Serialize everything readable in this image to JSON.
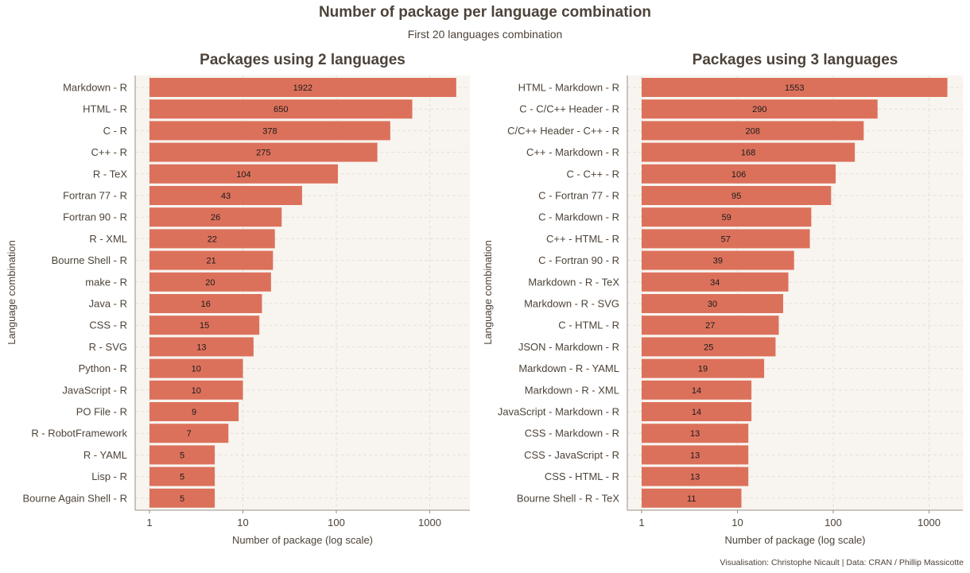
{
  "title": "Number of package per language combination",
  "subtitle": "First 20 languages combination",
  "caption": "Visualisation: Christophe Nicault | Data: CRAN / Phillip Massicotte",
  "colors": {
    "bar": "#dc715b",
    "panel_bg": "#f8f5f0",
    "grid": "#e6dfd5",
    "text": "#4d4339",
    "axis": "#9a8f84"
  },
  "chart_data": [
    {
      "type": "bar",
      "orientation": "horizontal",
      "title": "Packages using 2 languages",
      "xlabel": "Number of package (log scale)",
      "ylabel": "Language combination",
      "x_scale": "log10",
      "xticks": [
        "1",
        "10",
        "100",
        "1000"
      ],
      "grid": true,
      "categories": [
        "Markdown - R",
        "HTML - R",
        "C - R",
        "C++ - R",
        "R - TeX",
        "Fortran 77 - R",
        "Fortran 90 - R",
        "R - XML",
        "Bourne Shell - R",
        "make - R",
        "Java - R",
        "CSS - R",
        "R - SVG",
        "Python - R",
        "JavaScript - R",
        "PO File - R",
        "R - RobotFramework",
        "R - YAML",
        "Lisp - R",
        "Bourne Again Shell - R"
      ],
      "values": [
        1922,
        650,
        378,
        275,
        104,
        43,
        26,
        22,
        21,
        20,
        16,
        15,
        13,
        10,
        10,
        9,
        7,
        5,
        5,
        5
      ]
    },
    {
      "type": "bar",
      "orientation": "horizontal",
      "title": "Packages using 3 languages",
      "xlabel": "Number of package (log scale)",
      "ylabel": "Language combination",
      "x_scale": "log10",
      "xticks": [
        "1",
        "10",
        "100",
        "1000"
      ],
      "grid": true,
      "categories": [
        "HTML - Markdown - R",
        "C - C/C++ Header - R",
        "C/C++ Header - C++ - R",
        "C++ - Markdown - R",
        "C - C++ - R",
        "C - Fortran 77 - R",
        "C - Markdown - R",
        "C++ - HTML - R",
        "C - Fortran 90 - R",
        "Markdown - R - TeX",
        "Markdown - R - SVG",
        "C - HTML - R",
        "JSON - Markdown - R",
        "Markdown - R - YAML",
        "Markdown - R - XML",
        "JavaScript - Markdown - R",
        "CSS - Markdown - R",
        "CSS - JavaScript - R",
        "CSS - HTML - R",
        "Bourne Shell - R - TeX"
      ],
      "values": [
        1553,
        290,
        208,
        168,
        106,
        95,
        59,
        57,
        39,
        34,
        30,
        27,
        25,
        19,
        14,
        14,
        13,
        13,
        13,
        11
      ]
    }
  ]
}
